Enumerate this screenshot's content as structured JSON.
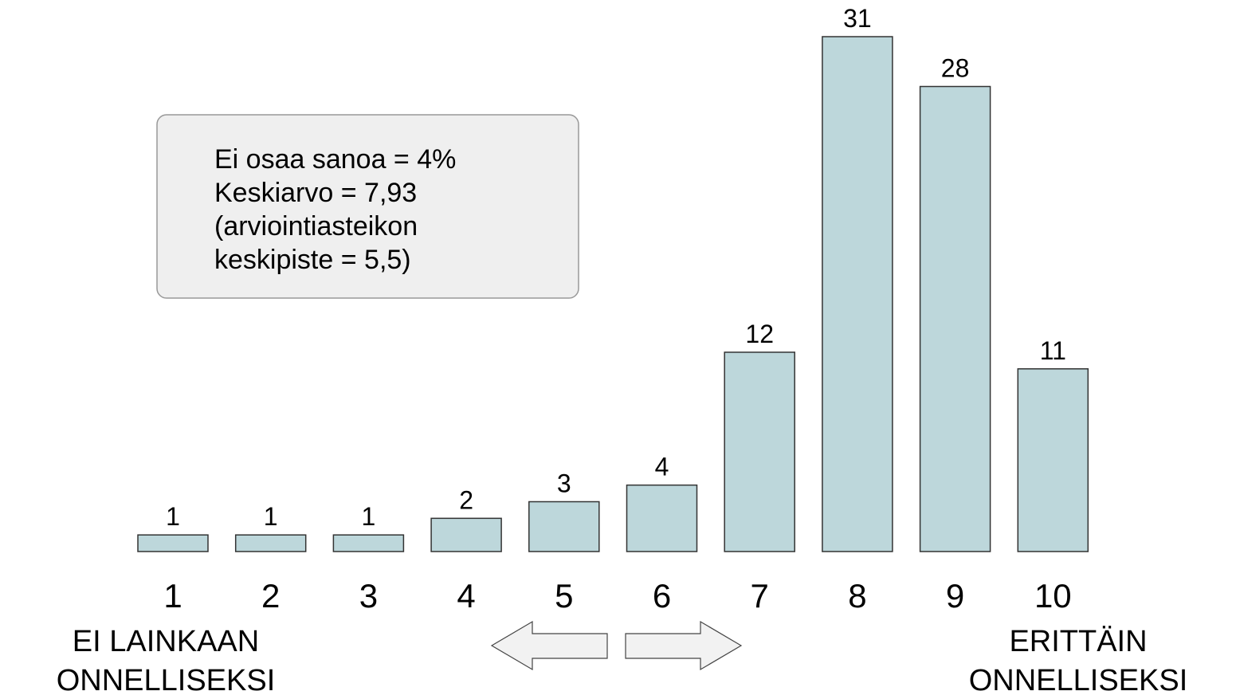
{
  "chart_data": {
    "type": "bar",
    "categories": [
      "1",
      "2",
      "3",
      "4",
      "5",
      "6",
      "7",
      "8",
      "9",
      "10"
    ],
    "values": [
      1,
      1,
      1,
      2,
      3,
      4,
      12,
      31,
      28,
      11
    ],
    "color": "#bdd7db",
    "annotation": [
      "Ei osaa sanoa = 4%",
      "Keskiarvo = 7,93",
      "(arviointiasteikon",
      "keskipiste = 5,5)"
    ],
    "left_label": [
      "EI LAINKAAN",
      "ONNELLISEKSI"
    ],
    "right_label": [
      "ERITTÄIN",
      "ONNELLISEKSI"
    ]
  }
}
